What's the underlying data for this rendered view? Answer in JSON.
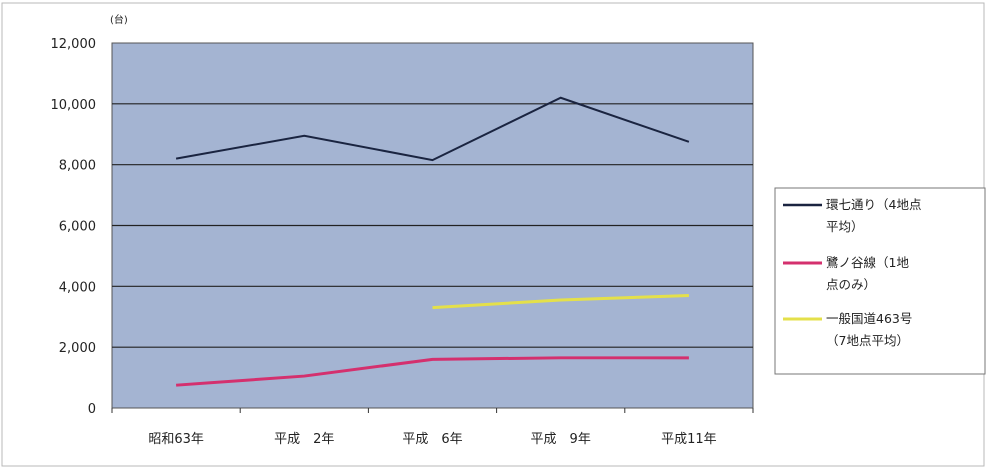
{
  "chart_data": {
    "type": "line",
    "unit_label": "(台)",
    "categories": [
      "昭和63年",
      "平成　2年",
      "平成　6年",
      "平成　9年",
      "平成11年"
    ],
    "ylim": [
      0,
      12000
    ],
    "yticks": [
      0,
      2000,
      4000,
      6000,
      8000,
      10000,
      12000
    ],
    "ytick_labels": [
      "0",
      "2,000",
      "4,000",
      "6,000",
      "8,000",
      "10,000",
      "12,000"
    ],
    "grid": true,
    "legend_placement": "right",
    "colors": {
      "plot_background": "#a4b4d2",
      "gridline": "#222222"
    },
    "series": [
      {
        "name_lines": [
          "環七通り（4地点",
          "平均）"
        ],
        "color": "#1a2440",
        "values": [
          8200,
          8950,
          8150,
          10200,
          8750
        ]
      },
      {
        "name_lines": [
          "鷺ノ谷線（1地",
          "点のみ）"
        ],
        "color": "#d4306e",
        "values": [
          750,
          1050,
          1600,
          1650,
          1650
        ]
      },
      {
        "name_lines": [
          "一般国道463号",
          "（7地点平均）"
        ],
        "color": "#e4e04a",
        "values": [
          null,
          null,
          3300,
          3550,
          3700
        ]
      }
    ]
  }
}
